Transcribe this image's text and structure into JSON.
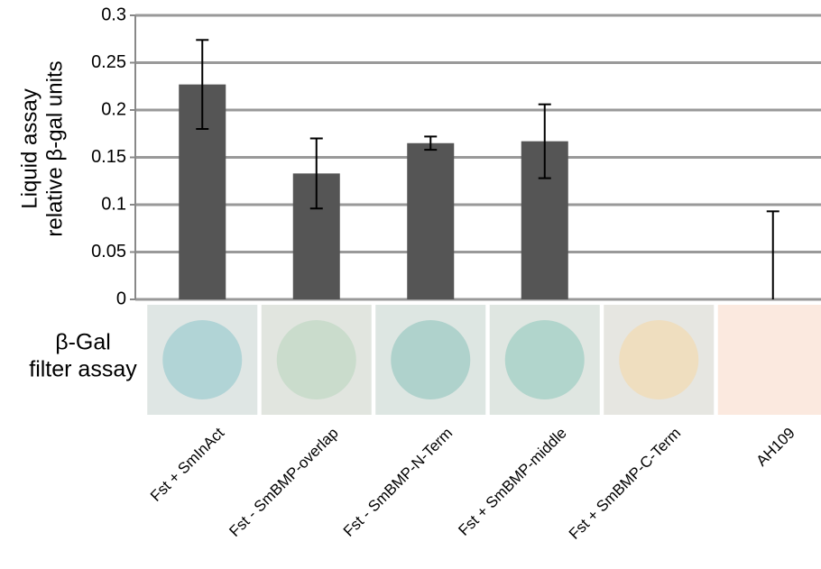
{
  "chart_data": {
    "type": "bar",
    "y_label": [
      "Liquid assay",
      "relative β-gal units"
    ],
    "filter_label": [
      "β-Gal",
      "filter assay"
    ],
    "categories": [
      "Fst + SmInAct",
      "Fst - SmBMP-overlap",
      "Fst - SmBMP-N-Term",
      "Fst + SmBMP-middle",
      "Fst + SmBMP-C-Term",
      "AH109"
    ],
    "values": [
      0.227,
      0.133,
      0.165,
      0.167,
      0,
      0
    ],
    "errors": [
      0.047,
      0.037,
      0.007,
      0.039,
      null,
      0.093
    ],
    "color": "#555555",
    "ylim": [
      0,
      0.3
    ],
    "yticks": [
      0,
      0.05,
      0.1,
      0.15,
      0.2,
      0.25,
      0.3
    ],
    "grid": true
  }
}
